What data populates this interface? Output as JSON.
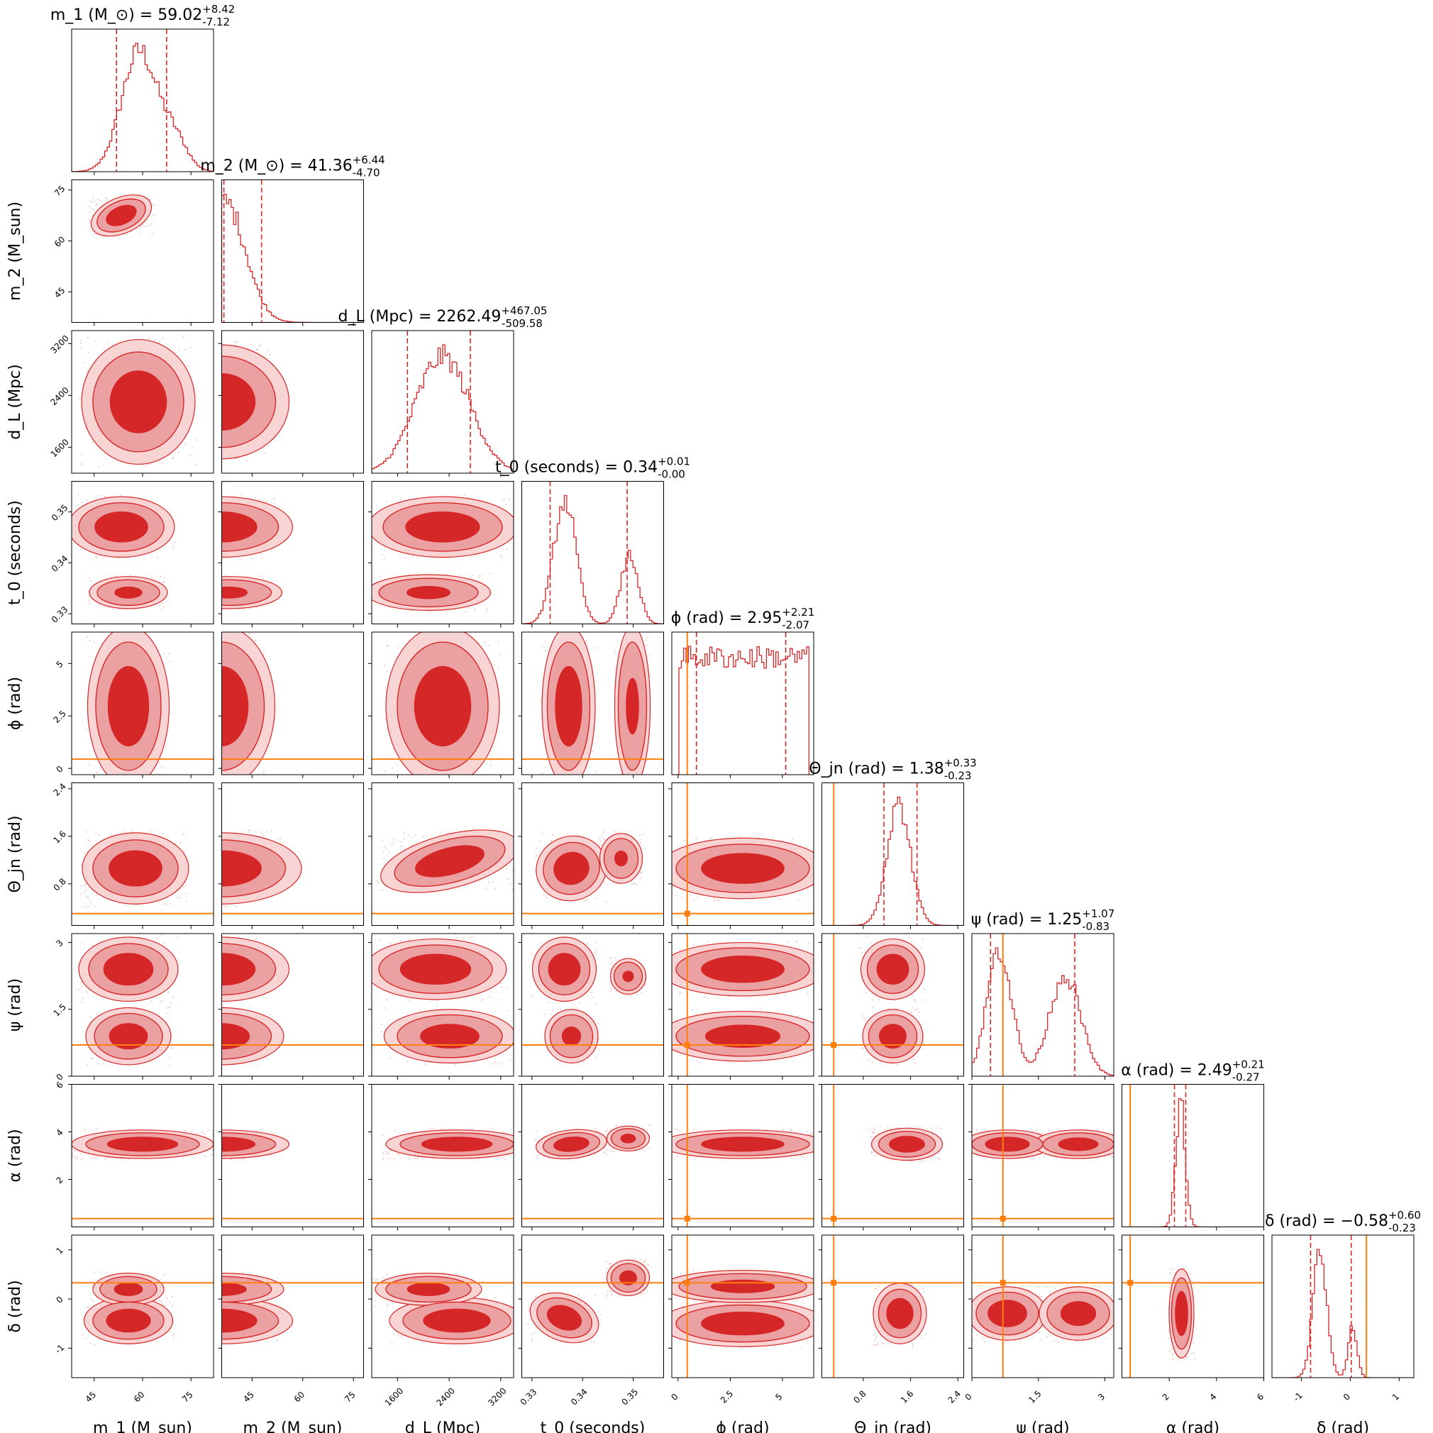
{
  "chart_data": {
    "type": "corner",
    "params": [
      {
        "id": "m1",
        "label": "m_1 (M_sun)",
        "range": [
          38,
          82
        ],
        "ticks": [
          45,
          60,
          75
        ],
        "title": "m_1 (M_⊙) = 59.02^{+8.42}_{-7.12}",
        "median": 59.02,
        "q_low": 51.9,
        "q_high": 67.44,
        "truth": null,
        "dist": {
          "comps": [
            {
              "mu": 59,
              "sd": 5.5,
              "w": 1
            },
            {
              "mu": 70,
              "sd": 4,
              "w": 0.25
            }
          ]
        }
      },
      {
        "id": "m2",
        "label": "m_2 (M_sun)",
        "range": [
          36,
          78
        ],
        "ticks": [
          45,
          60,
          75
        ],
        "title": "m_2 (M_⊙) = 41.36^{+6.44}_{-4.70}",
        "median": 41.36,
        "q_low": 36.66,
        "q_high": 47.8,
        "truth": null,
        "dist": {
          "comps": [
            {
              "mu": 37,
              "sd": 6,
              "w": 1
            }
          ],
          "lower_cut": 36.3
        }
      },
      {
        "id": "dL",
        "label": "d_L (Mpc)",
        "range": [
          1200,
          3400
        ],
        "ticks": [
          1600,
          2400,
          3200
        ],
        "title": "d_L (Mpc) = 2262.49^{+467.05}_{-509.58}",
        "median": 2262.49,
        "q_low": 1752.91,
        "q_high": 2729.54,
        "truth": null,
        "dist": {
          "comps": [
            {
              "mu": 2300,
              "sd": 420,
              "w": 1
            }
          ]
        }
      },
      {
        "id": "t0",
        "label": "t_0 (seconds)",
        "range": [
          0.328,
          0.356
        ],
        "ticks": [
          0.33,
          0.34,
          0.35
        ],
        "title": "t_0 (seconds) = 0.34^{+0.01}_{-0.00}",
        "median": 0.3365,
        "q_low": 0.3336,
        "q_high": 0.3488,
        "truth": null,
        "dist": {
          "comps": [
            {
              "mu": 0.3365,
              "sd": 0.0022,
              "w": 1
            },
            {
              "mu": 0.3493,
              "sd": 0.0017,
              "w": 0.55
            }
          ]
        }
      },
      {
        "id": "phi",
        "label": "ϕ (rad)",
        "range": [
          -0.3,
          6.5
        ],
        "ticks": [
          0.0,
          2.5,
          5.0
        ],
        "title": "ϕ (rad) = 2.95^{+2.21}_{-2.07}",
        "median": 2.95,
        "q_low": 0.88,
        "q_high": 5.16,
        "truth": 0.44,
        "dist": {
          "uniform": [
            0.05,
            6.25
          ]
        }
      },
      {
        "id": "theta_jn",
        "label": "Θ_jn (rad)",
        "range": [
          0.1,
          2.5
        ],
        "ticks": [
          0.8,
          1.6,
          2.4
        ],
        "title": "Θ_jn (rad) = 1.38^{+0.33}_{-0.23}",
        "median": 1.38,
        "q_low": 1.15,
        "q_high": 1.71,
        "truth": 0.3,
        "dist": {
          "comps": [
            {
              "mu": 1.4,
              "sd": 0.2,
              "w": 1
            }
          ]
        }
      },
      {
        "id": "psi",
        "label": "ψ (rad)",
        "range": [
          0.0,
          3.2
        ],
        "ticks": [
          0.0,
          1.5,
          3.0
        ],
        "title": "ψ (rad) = 1.25^{+1.07}_{-0.83}",
        "median": 1.25,
        "q_low": 0.42,
        "q_high": 2.32,
        "truth": 0.7,
        "dist": {
          "comps": [
            {
              "mu": 0.62,
              "sd": 0.28,
              "w": 1
            },
            {
              "mu": 2.1,
              "sd": 0.35,
              "w": 0.8
            }
          ]
        }
      },
      {
        "id": "alpha",
        "label": "α (rad)",
        "range": [
          0.0,
          6.0
        ],
        "ticks": [
          2,
          4,
          6
        ],
        "title": "α (rad) = 2.49^{+0.21}_{-0.27}",
        "median": 2.49,
        "q_low": 2.22,
        "q_high": 2.7,
        "truth": 0.35,
        "dist": {
          "comps": [
            {
              "mu": 2.48,
              "sd": 0.2,
              "w": 1
            }
          ]
        }
      },
      {
        "id": "delta",
        "label": "δ (rad)",
        "range": [
          -1.6,
          1.3
        ],
        "ticks": [
          -1,
          0,
          1
        ],
        "title": "δ (rad) = −0.58^{+0.60}_{-0.23}",
        "median": -0.58,
        "q_low": -0.81,
        "q_high": 0.02,
        "truth": 0.33,
        "dist": {
          "comps": [
            {
              "mu": -0.62,
              "sd": 0.14,
              "w": 1
            },
            {
              "mu": 0.05,
              "sd": 0.09,
              "w": 0.4
            }
          ]
        }
      }
    ],
    "blob_shapes": {
      "1-0": [
        [
          0,
          0.35,
          0.25,
          0.18,
          0.1,
          -0.4,
          1
        ]
      ],
      "2-0": [
        [
          0,
          0.47,
          0.5,
          0.32,
          0.35,
          0,
          1
        ]
      ],
      "2-1": [
        [
          1,
          0.0,
          0.5,
          0.38,
          0.32,
          0,
          1
        ]
      ],
      "3-0": [
        [
          0,
          0.35,
          0.32,
          0.3,
          0.17,
          0,
          1
        ],
        [
          0,
          0.4,
          0.78,
          0.22,
          0.09,
          0,
          0.7
        ]
      ],
      "3-1": [
        [
          1,
          0.0,
          0.32,
          0.4,
          0.17,
          0,
          1
        ],
        [
          1,
          0.05,
          0.78,
          0.3,
          0.09,
          0,
          0.7
        ]
      ],
      "3-2": [
        [
          0,
          0.5,
          0.32,
          0.42,
          0.17,
          0,
          1
        ],
        [
          0,
          0.4,
          0.78,
          0.35,
          0.1,
          0,
          0.7
        ]
      ],
      "3-3": [
        [
          0,
          0.3,
          0.5,
          0.12,
          0.42,
          0,
          1
        ],
        [
          0,
          0.75,
          0.5,
          0.1,
          0.42,
          0,
          0.75
        ]
      ],
      "4-0": [
        [
          0,
          0.4,
          0.52,
          0.23,
          0.45,
          0,
          1
        ]
      ],
      "4-1": [
        [
          1,
          0.0,
          0.52,
          0.3,
          0.45,
          0,
          1
        ]
      ],
      "4-2": [
        [
          0,
          0.5,
          0.52,
          0.32,
          0.45,
          0,
          1
        ]
      ],
      "4-3": [
        [
          0,
          0.33,
          0.52,
          0.15,
          0.45,
          0,
          1
        ],
        [
          0,
          0.78,
          0.52,
          0.1,
          0.45,
          0,
          0.7
        ]
      ],
      "5-0": [
        [
          0,
          0.45,
          0.6,
          0.3,
          0.2,
          0,
          1
        ]
      ],
      "5-1": [
        [
          1,
          0.0,
          0.6,
          0.45,
          0.2,
          0,
          1
        ]
      ],
      "5-2": [
        [
          0,
          0.55,
          0.55,
          0.4,
          0.15,
          -0.25,
          1
        ]
      ],
      "5-3": [
        [
          0,
          0.35,
          0.6,
          0.2,
          0.18,
          -0.3,
          1
        ],
        [
          0,
          0.7,
          0.53,
          0.12,
          0.14,
          0,
          0.6
        ]
      ],
      "5-4": [
        [
          0,
          0.5,
          0.6,
          0.47,
          0.17,
          0,
          1
        ]
      ],
      "6-0": [
        [
          0,
          0.4,
          0.25,
          0.28,
          0.18,
          0,
          1
        ],
        [
          0,
          0.4,
          0.72,
          0.24,
          0.16,
          0,
          0.9
        ]
      ],
      "6-1": [
        [
          1,
          0.0,
          0.25,
          0.38,
          0.18,
          0,
          1
        ],
        [
          1,
          0.0,
          0.72,
          0.35,
          0.16,
          0,
          0.9
        ]
      ],
      "6-2": [
        [
          0,
          0.45,
          0.25,
          0.4,
          0.17,
          0,
          1
        ],
        [
          0,
          0.55,
          0.72,
          0.37,
          0.15,
          0,
          0.9
        ]
      ],
      "6-3": [
        [
          0,
          0.3,
          0.25,
          0.18,
          0.18,
          0,
          1
        ],
        [
          0,
          0.35,
          0.72,
          0.15,
          0.15,
          0,
          0.7
        ],
        [
          0,
          0.75,
          0.3,
          0.1,
          0.1,
          0,
          0.6
        ]
      ],
      "6-4": [
        [
          0,
          0.5,
          0.25,
          0.47,
          0.15,
          0,
          1
        ],
        [
          0,
          0.5,
          0.72,
          0.47,
          0.14,
          0,
          0.9
        ]
      ],
      "6-5": [
        [
          0,
          0.5,
          0.25,
          0.18,
          0.17,
          0,
          1
        ],
        [
          0,
          0.5,
          0.72,
          0.17,
          0.15,
          0,
          0.9
        ]
      ],
      "7-0": [
        [
          0,
          0.5,
          0.42,
          0.4,
          0.08,
          0,
          1
        ]
      ],
      "7-1": [
        [
          1,
          0.0,
          0.42,
          0.38,
          0.08,
          0,
          1
        ]
      ],
      "7-2": [
        [
          0,
          0.6,
          0.42,
          0.4,
          0.08,
          0,
          1
        ]
      ],
      "7-3": [
        [
          0,
          0.35,
          0.42,
          0.2,
          0.08,
          -0.1,
          1
        ],
        [
          0,
          0.75,
          0.38,
          0.12,
          0.07,
          0,
          0.7
        ]
      ],
      "7-4": [
        [
          0,
          0.5,
          0.42,
          0.47,
          0.08,
          0,
          1
        ]
      ],
      "7-5": [
        [
          0,
          0.6,
          0.42,
          0.2,
          0.09,
          0,
          1
        ]
      ],
      "7-6": [
        [
          0,
          0.25,
          0.42,
          0.25,
          0.08,
          0,
          1
        ],
        [
          0,
          0.75,
          0.42,
          0.25,
          0.08,
          0,
          0.9
        ]
      ],
      "7-7": [
        [
          0,
          0.4,
          0.42,
          0.08,
          0.09,
          0,
          1
        ]
      ],
      "8-0": [
        [
          0,
          0.4,
          0.6,
          0.25,
          0.13,
          0,
          1
        ],
        [
          0,
          0.4,
          0.38,
          0.2,
          0.09,
          0,
          0.8
        ]
      ],
      "8-1": [
        [
          1,
          0.0,
          0.6,
          0.4,
          0.13,
          0,
          1
        ],
        [
          1,
          0.0,
          0.38,
          0.35,
          0.09,
          0,
          0.8
        ]
      ],
      "8-2": [
        [
          0,
          0.6,
          0.6,
          0.38,
          0.13,
          0,
          1
        ],
        [
          0,
          0.4,
          0.38,
          0.3,
          0.09,
          0,
          0.8
        ]
      ],
      "8-3": [
        [
          0,
          0.3,
          0.58,
          0.2,
          0.13,
          0.35,
          1
        ],
        [
          0,
          0.75,
          0.3,
          0.12,
          0.1,
          0,
          0.8
        ]
      ],
      "8-4": [
        [
          0,
          0.5,
          0.62,
          0.47,
          0.13,
          0,
          1
        ],
        [
          0,
          0.5,
          0.36,
          0.45,
          0.09,
          0,
          0.8
        ]
      ],
      "8-5": [
        [
          0,
          0.55,
          0.55,
          0.15,
          0.17,
          0,
          1
        ]
      ],
      "8-6": [
        [
          0,
          0.25,
          0.55,
          0.22,
          0.15,
          0,
          1
        ],
        [
          0,
          0.75,
          0.55,
          0.22,
          0.15,
          0,
          0.9
        ]
      ],
      "8-7": [
        [
          0,
          0.42,
          0.55,
          0.07,
          0.25,
          0,
          1
        ]
      ]
    }
  }
}
